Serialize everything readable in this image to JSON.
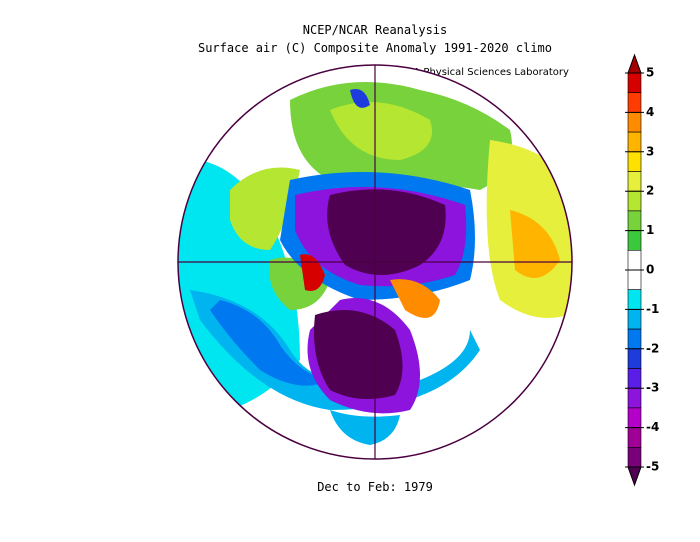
{
  "header": {
    "title": "NCEP/NCAR Reanalysis",
    "subtitle": "Surface air (C) Composite Anomaly 1991-2020 climo",
    "credit": "NOAA Physical Sciences Laboratory"
  },
  "caption": "Dec to Feb: 1979",
  "colorbar": {
    "range": [
      -5,
      5
    ],
    "ticks": [
      5,
      4,
      3,
      2,
      1,
      0,
      -1,
      -2,
      -3,
      -4,
      -5
    ],
    "colors": [
      "#a50000",
      "#d70000",
      "#ff3c00",
      "#ff8c00",
      "#ffb400",
      "#ffe100",
      "#e6f03c",
      "#b4e632",
      "#78d23c",
      "#3cc83c",
      "#ffffff",
      "#ffffff",
      "#00e6f0",
      "#00b4f0",
      "#0078f0",
      "#1e3cdc",
      "#5a1ee6",
      "#8c14dc",
      "#b400c8",
      "#a00096",
      "#780078",
      "#500050"
    ]
  }
}
